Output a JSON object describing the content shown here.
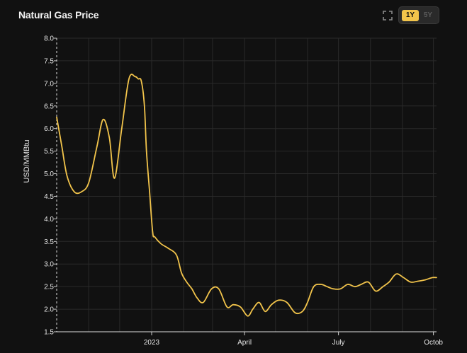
{
  "header": {
    "title": "Natural Gas Price",
    "range_active": "1Y",
    "range_inactive": "5Y",
    "expand_icon": "expand-icon"
  },
  "colors": {
    "background": "#111111",
    "line": "#f2c44b",
    "grid": "#2a2a2a",
    "active_range": "#f2c44b"
  },
  "chart_data": {
    "type": "line",
    "title": "Natural Gas Price",
    "xlabel": "",
    "ylabel": "USD/MMBtu",
    "ylim": [
      1.5,
      8.0
    ],
    "yticks": [
      "8.0",
      "7.5",
      "7.0",
      "6.5",
      "6.0",
      "5.5",
      "5.0",
      "4.5",
      "4.0",
      "3.5",
      "3.0",
      "2.5",
      "2.0",
      "1.5"
    ],
    "xlim": [
      "2022-10-01",
      "2023-10-04"
    ],
    "xticks": [
      {
        "date": "2023-01-01",
        "label": "2023"
      },
      {
        "date": "2023-04-01",
        "label": "April"
      },
      {
        "date": "2023-07-01",
        "label": "July"
      },
      {
        "date": "2023-10-01",
        "label": "Octob"
      }
    ],
    "grid": true,
    "series": [
      {
        "name": "",
        "x": [
          "2022-10-01",
          "2022-10-06",
          "2022-10-11",
          "2022-10-18",
          "2022-10-25",
          "2022-11-01",
          "2022-11-09",
          "2022-11-15",
          "2022-11-21",
          "2022-11-26",
          "2022-12-03",
          "2022-12-10",
          "2022-12-16",
          "2022-12-19",
          "2022-12-22",
          "2022-12-25",
          "2022-12-27",
          "2022-12-30",
          "2023-01-02",
          "2023-01-04",
          "2023-01-10",
          "2023-01-17",
          "2023-01-25",
          "2023-01-30",
          "2023-02-04",
          "2023-02-09",
          "2023-02-14",
          "2023-02-20",
          "2023-02-28",
          "2023-03-07",
          "2023-03-15",
          "2023-03-21",
          "2023-03-28",
          "2023-04-04",
          "2023-04-09",
          "2023-04-15",
          "2023-04-21",
          "2023-04-27",
          "2023-05-04",
          "2023-05-12",
          "2023-05-20",
          "2023-05-27",
          "2023-06-01",
          "2023-06-07",
          "2023-06-14",
          "2023-06-20",
          "2023-06-26",
          "2023-07-03",
          "2023-07-10",
          "2023-07-17",
          "2023-07-23",
          "2023-07-30",
          "2023-08-06",
          "2023-08-13",
          "2023-08-19",
          "2023-08-26",
          "2023-09-02",
          "2023-09-09",
          "2023-09-16",
          "2023-09-23",
          "2023-09-30",
          "2023-10-04"
        ],
        "y": [
          6.25,
          5.6,
          4.95,
          4.6,
          4.6,
          4.8,
          5.6,
          6.2,
          5.8,
          4.9,
          6.0,
          7.1,
          7.15,
          7.1,
          7.05,
          6.5,
          5.5,
          4.6,
          3.7,
          3.6,
          3.45,
          3.35,
          3.2,
          2.8,
          2.6,
          2.45,
          2.25,
          2.15,
          2.45,
          2.45,
          2.05,
          2.1,
          2.05,
          1.85,
          2.0,
          2.15,
          1.95,
          2.1,
          2.2,
          2.15,
          1.92,
          1.95,
          2.15,
          2.5,
          2.55,
          2.5,
          2.45,
          2.45,
          2.55,
          2.5,
          2.55,
          2.6,
          2.4,
          2.5,
          2.6,
          2.78,
          2.7,
          2.6,
          2.62,
          2.65,
          2.7,
          2.7
        ]
      }
    ]
  }
}
